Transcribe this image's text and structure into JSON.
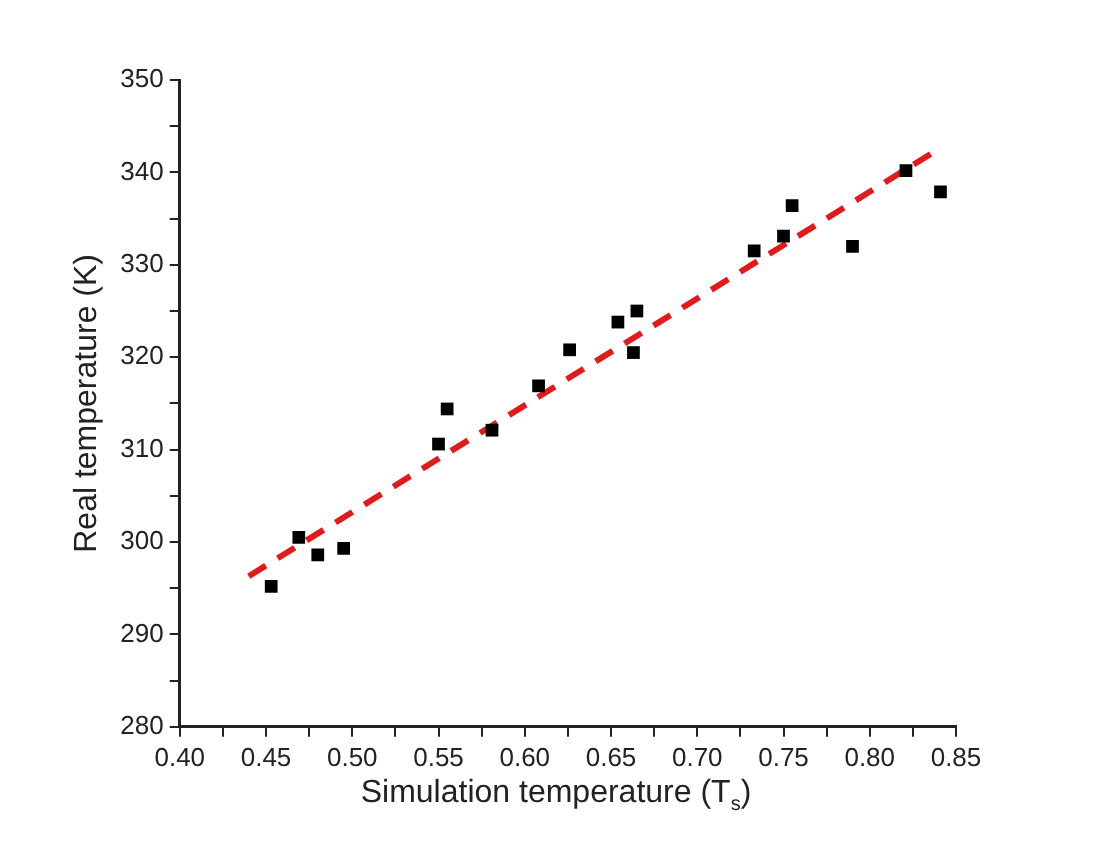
{
  "chart_data": {
    "type": "scatter",
    "xlabel": "Simulation temperature (T$_{s}$)",
    "ylabel": "Real temperature (K)",
    "xlim": [
      0.4,
      0.85
    ],
    "ylim": [
      280,
      350
    ],
    "xticks": [
      {
        "value": 0.4,
        "label": "0.40"
      },
      {
        "value": 0.425,
        "label": null
      },
      {
        "value": 0.45,
        "label": "0.45"
      },
      {
        "value": 0.475,
        "label": null
      },
      {
        "value": 0.5,
        "label": "0.50"
      },
      {
        "value": 0.525,
        "label": null
      },
      {
        "value": 0.55,
        "label": "0.55"
      },
      {
        "value": 0.575,
        "label": null
      },
      {
        "value": 0.6,
        "label": "0.60"
      },
      {
        "value": 0.625,
        "label": null
      },
      {
        "value": 0.65,
        "label": "0.65"
      },
      {
        "value": 0.675,
        "label": null
      },
      {
        "value": 0.7,
        "label": "0.70"
      },
      {
        "value": 0.725,
        "label": null
      },
      {
        "value": 0.75,
        "label": "0.75"
      },
      {
        "value": 0.775,
        "label": null
      },
      {
        "value": 0.8,
        "label": "0.80"
      },
      {
        "value": 0.825,
        "label": null
      },
      {
        "value": 0.85,
        "label": "0.85"
      }
    ],
    "yticks": [
      280,
      {
        "value": 285,
        "label": null
      },
      290,
      {
        "value": 295,
        "label": null
      },
      300,
      {
        "value": 305,
        "label": null
      },
      310,
      {
        "value": 315,
        "label": null
      },
      320,
      {
        "value": 325,
        "label": null
      },
      330,
      {
        "value": 335,
        "label": null
      },
      340,
      {
        "value": 345,
        "label": null
      },
      350
    ],
    "grid": false,
    "legend": false,
    "series": [
      {
        "type": "scatter",
        "color": "#000000",
        "marker": "square",
        "x": [
          0.453,
          0.469,
          0.48,
          0.495,
          0.55,
          0.555,
          0.581,
          0.608,
          0.626,
          0.654,
          0.665,
          0.663,
          0.733,
          0.75,
          0.755,
          0.79,
          0.821,
          0.841
        ],
        "values": [
          295.2,
          300.5,
          298.6,
          299.3,
          310.6,
          314.4,
          312.1,
          316.9,
          320.8,
          323.8,
          325,
          320.5,
          331.5,
          333.1,
          336.4,
          332,
          340.2,
          337.9
        ]
      },
      {
        "type": "line",
        "color": "#e31a1c",
        "line_style": "dashed",
        "marker": "none",
        "x": [
          0.44,
          0.838
        ],
        "values": [
          296.3,
          342.3
        ]
      }
    ]
  }
}
